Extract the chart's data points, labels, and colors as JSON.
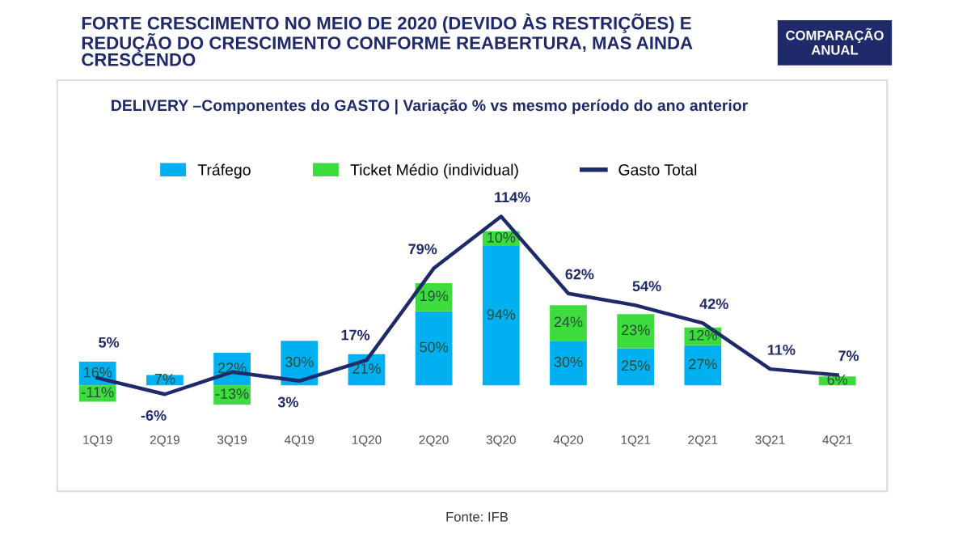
{
  "chart_data": {
    "type": "bar",
    "title": "FORTE CRESCIMENTO NO MEIO DE 2020 (DEVIDO ÀS RESTRIÇÕES) E\nREDUÇÃO DO CRESCIMENTO CONFORME REABERTURA, MAS AINDA\nCRESCENDO",
    "subtitle": "DELIVERY –Componentes do GASTO | Variação % vs mesmo período do ano anterior",
    "annotations": [
      "COMPARAÇÃO\nANUAL",
      "Fonte: IFB"
    ],
    "categories": [
      "1Q19",
      "2Q19",
      "3Q19",
      "4Q19",
      "1Q20",
      "2Q20",
      "3Q20",
      "4Q20",
      "1Q21",
      "2Q21",
      "3Q21",
      "4Q21"
    ],
    "stacked": true,
    "legend": "top",
    "grid": false,
    "tick_labels": "x",
    "series": [
      {
        "name": "Tráfego",
        "color": "#00b0f0",
        "values": [
          16,
          7,
          22,
          30,
          21,
          50,
          94,
          30,
          25,
          27,
          null,
          null
        ],
        "value_labels": [
          "16%",
          "7%",
          "22%",
          "30%",
          "21%",
          "50%",
          "94%",
          "30%",
          "25%",
          "27%",
          null,
          null
        ]
      },
      {
        "name": "Ticket Médio (individual)",
        "color": "#3ddc3d",
        "values": [
          -11,
          null,
          -13,
          null,
          null,
          19,
          10,
          24,
          23,
          12,
          null,
          6
        ],
        "value_labels": [
          "-11%",
          null,
          "-13%",
          null,
          null,
          "19%",
          "10%",
          "24%",
          "23%",
          "12%",
          null,
          "6%"
        ]
      },
      {
        "name": "Gasto Total",
        "type": "line",
        "color": "#1f2a6b",
        "values": [
          5,
          -6,
          9,
          3,
          17,
          79,
          114,
          62,
          54,
          42,
          11,
          7
        ],
        "value_labels": [
          "5%",
          "-6%",
          null,
          "3%",
          "17%",
          "79%",
          "114%",
          "62%",
          "54%",
          "42%",
          "11%",
          "7%"
        ]
      }
    ]
  }
}
